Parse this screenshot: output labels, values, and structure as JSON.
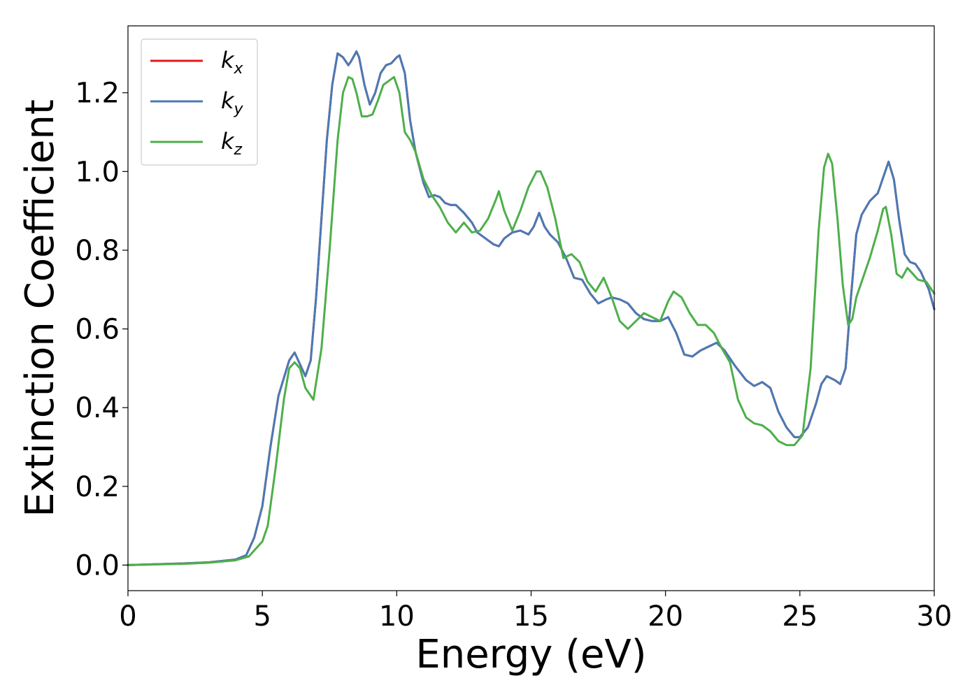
{
  "chart_data": {
    "type": "line",
    "xlabel": "Energy (eV)",
    "ylabel": "Extinction Coefficient",
    "xlim": [
      0,
      30
    ],
    "ylim": [
      -0.065,
      1.37
    ],
    "xticks": [
      0,
      5,
      10,
      15,
      20,
      25,
      30
    ],
    "xtick_labels": [
      "0",
      "5",
      "10",
      "15",
      "20",
      "25",
      "30"
    ],
    "yticks": [
      0.0,
      0.2,
      0.4,
      0.6,
      0.8,
      1.0,
      1.2
    ],
    "ytick_labels": [
      "0.0",
      "0.2",
      "0.4",
      "0.6",
      "0.8",
      "1.0",
      "1.2"
    ],
    "grid": false,
    "legend_position": "top-left",
    "series": [
      {
        "name": "kx",
        "base": "k",
        "sub": "x",
        "color": "#e41a1c",
        "x": [
          0,
          2,
          3,
          4,
          4.4,
          4.7,
          5.0,
          5.3,
          5.6,
          6.0,
          6.2,
          6.4,
          6.6,
          6.8,
          7.0,
          7.2,
          7.4,
          7.6,
          7.8,
          8.0,
          8.2,
          8.3,
          8.5,
          8.6,
          8.8,
          9.0,
          9.2,
          9.4,
          9.6,
          9.8,
          10.0,
          10.1,
          10.3,
          10.5,
          10.7,
          11.0,
          11.2,
          11.4,
          11.6,
          11.8,
          12.0,
          12.2,
          12.5,
          12.8,
          13.0,
          13.3,
          13.6,
          13.8,
          14.0,
          14.3,
          14.6,
          14.9,
          15.1,
          15.3,
          15.5,
          15.7,
          16.0,
          16.3,
          16.6,
          16.9,
          17.2,
          17.5,
          17.8,
          18.0,
          18.3,
          18.6,
          18.9,
          19.2,
          19.5,
          19.8,
          20.1,
          20.4,
          20.7,
          21.0,
          21.3,
          21.6,
          21.9,
          22.2,
          22.6,
          23.0,
          23.3,
          23.6,
          23.9,
          24.2,
          24.5,
          24.8,
          25.0,
          25.3,
          25.6,
          25.8,
          26.0,
          26.3,
          26.5,
          26.7,
          26.9,
          27.1,
          27.3,
          27.6,
          27.9,
          28.1,
          28.3,
          28.5,
          28.7,
          28.9,
          29.1,
          29.3,
          29.5,
          29.8,
          30.0
        ],
        "y": [
          0,
          0.004,
          0.007,
          0.014,
          0.025,
          0.07,
          0.15,
          0.3,
          0.43,
          0.52,
          0.54,
          0.51,
          0.48,
          0.52,
          0.68,
          0.88,
          1.08,
          1.22,
          1.3,
          1.29,
          1.27,
          1.28,
          1.305,
          1.29,
          1.22,
          1.17,
          1.2,
          1.25,
          1.27,
          1.275,
          1.29,
          1.295,
          1.25,
          1.13,
          1.05,
          0.97,
          0.935,
          0.94,
          0.935,
          0.92,
          0.915,
          0.915,
          0.895,
          0.87,
          0.845,
          0.83,
          0.815,
          0.81,
          0.83,
          0.845,
          0.85,
          0.84,
          0.86,
          0.895,
          0.86,
          0.84,
          0.82,
          0.78,
          0.73,
          0.725,
          0.69,
          0.665,
          0.675,
          0.68,
          0.675,
          0.665,
          0.64,
          0.625,
          0.62,
          0.62,
          0.63,
          0.59,
          0.535,
          0.53,
          0.545,
          0.555,
          0.565,
          0.545,
          0.505,
          0.47,
          0.455,
          0.465,
          0.45,
          0.39,
          0.35,
          0.325,
          0.325,
          0.35,
          0.41,
          0.46,
          0.48,
          0.47,
          0.46,
          0.5,
          0.68,
          0.84,
          0.89,
          0.925,
          0.945,
          0.985,
          1.025,
          0.98,
          0.875,
          0.79,
          0.77,
          0.765,
          0.745,
          0.7,
          0.65
        ]
      },
      {
        "name": "ky",
        "base": "k",
        "sub": "y",
        "color": "#4a7ab5",
        "x": [
          0,
          2,
          3,
          4,
          4.4,
          4.7,
          5.0,
          5.3,
          5.6,
          6.0,
          6.2,
          6.4,
          6.6,
          6.8,
          7.0,
          7.2,
          7.4,
          7.6,
          7.8,
          8.0,
          8.2,
          8.3,
          8.5,
          8.6,
          8.8,
          9.0,
          9.2,
          9.4,
          9.6,
          9.8,
          10.0,
          10.1,
          10.3,
          10.5,
          10.7,
          11.0,
          11.2,
          11.4,
          11.6,
          11.8,
          12.0,
          12.2,
          12.5,
          12.8,
          13.0,
          13.3,
          13.6,
          13.8,
          14.0,
          14.3,
          14.6,
          14.9,
          15.1,
          15.3,
          15.5,
          15.7,
          16.0,
          16.3,
          16.6,
          16.9,
          17.2,
          17.5,
          17.8,
          18.0,
          18.3,
          18.6,
          18.9,
          19.2,
          19.5,
          19.8,
          20.1,
          20.4,
          20.7,
          21.0,
          21.3,
          21.6,
          21.9,
          22.2,
          22.6,
          23.0,
          23.3,
          23.6,
          23.9,
          24.2,
          24.5,
          24.8,
          25.0,
          25.3,
          25.6,
          25.8,
          26.0,
          26.3,
          26.5,
          26.7,
          26.9,
          27.1,
          27.3,
          27.6,
          27.9,
          28.1,
          28.3,
          28.5,
          28.7,
          28.9,
          29.1,
          29.3,
          29.5,
          29.8,
          30.0
        ],
        "y": [
          0,
          0.004,
          0.007,
          0.014,
          0.025,
          0.07,
          0.15,
          0.3,
          0.43,
          0.52,
          0.54,
          0.51,
          0.48,
          0.52,
          0.68,
          0.88,
          1.08,
          1.22,
          1.3,
          1.29,
          1.27,
          1.28,
          1.305,
          1.29,
          1.22,
          1.17,
          1.2,
          1.25,
          1.27,
          1.275,
          1.29,
          1.295,
          1.25,
          1.13,
          1.05,
          0.97,
          0.935,
          0.94,
          0.935,
          0.92,
          0.915,
          0.915,
          0.895,
          0.87,
          0.845,
          0.83,
          0.815,
          0.81,
          0.83,
          0.845,
          0.85,
          0.84,
          0.86,
          0.895,
          0.86,
          0.84,
          0.82,
          0.78,
          0.73,
          0.725,
          0.69,
          0.665,
          0.675,
          0.68,
          0.675,
          0.665,
          0.64,
          0.625,
          0.62,
          0.62,
          0.63,
          0.59,
          0.535,
          0.53,
          0.545,
          0.555,
          0.565,
          0.545,
          0.505,
          0.47,
          0.455,
          0.465,
          0.45,
          0.39,
          0.35,
          0.325,
          0.325,
          0.35,
          0.41,
          0.46,
          0.48,
          0.47,
          0.46,
          0.5,
          0.68,
          0.84,
          0.89,
          0.925,
          0.945,
          0.985,
          1.025,
          0.98,
          0.875,
          0.79,
          0.77,
          0.765,
          0.745,
          0.7,
          0.65
        ]
      },
      {
        "name": "kz",
        "base": "k",
        "sub": "z",
        "color": "#4daf4a",
        "x": [
          0,
          2,
          3,
          4,
          4.5,
          5.0,
          5.2,
          5.5,
          5.8,
          6.0,
          6.2,
          6.4,
          6.6,
          6.9,
          7.2,
          7.5,
          7.8,
          8.0,
          8.2,
          8.35,
          8.5,
          8.7,
          8.9,
          9.1,
          9.3,
          9.5,
          9.7,
          9.9,
          10.1,
          10.3,
          10.5,
          10.7,
          11.0,
          11.3,
          11.6,
          11.9,
          12.2,
          12.5,
          12.8,
          13.1,
          13.4,
          13.7,
          13.8,
          14.0,
          14.3,
          14.6,
          14.9,
          15.2,
          15.35,
          15.6,
          15.9,
          16.2,
          16.5,
          16.8,
          17.1,
          17.4,
          17.7,
          18.0,
          18.3,
          18.6,
          18.9,
          19.2,
          19.5,
          19.8,
          20.1,
          20.3,
          20.6,
          20.9,
          21.2,
          21.5,
          21.8,
          22.1,
          22.4,
          22.7,
          23.0,
          23.3,
          23.6,
          23.9,
          24.2,
          24.5,
          24.8,
          25.1,
          25.4,
          25.7,
          25.9,
          26.05,
          26.2,
          26.4,
          26.6,
          26.8,
          26.95,
          27.1,
          27.3,
          27.6,
          27.9,
          28.1,
          28.2,
          28.4,
          28.6,
          28.8,
          29.0,
          29.2,
          29.4,
          29.7,
          30.0
        ],
        "y": [
          0,
          0.003,
          0.006,
          0.012,
          0.022,
          0.06,
          0.1,
          0.25,
          0.42,
          0.5,
          0.515,
          0.5,
          0.45,
          0.42,
          0.55,
          0.8,
          1.08,
          1.2,
          1.24,
          1.235,
          1.2,
          1.14,
          1.14,
          1.145,
          1.18,
          1.22,
          1.23,
          1.24,
          1.2,
          1.1,
          1.08,
          1.05,
          0.98,
          0.94,
          0.91,
          0.87,
          0.845,
          0.87,
          0.845,
          0.85,
          0.88,
          0.93,
          0.95,
          0.9,
          0.85,
          0.9,
          0.96,
          1.0,
          1.0,
          0.96,
          0.88,
          0.78,
          0.79,
          0.77,
          0.72,
          0.695,
          0.73,
          0.68,
          0.62,
          0.6,
          0.62,
          0.64,
          0.63,
          0.62,
          0.67,
          0.695,
          0.68,
          0.64,
          0.61,
          0.61,
          0.59,
          0.55,
          0.515,
          0.42,
          0.375,
          0.36,
          0.355,
          0.34,
          0.315,
          0.305,
          0.305,
          0.33,
          0.5,
          0.85,
          1.01,
          1.045,
          1.02,
          0.88,
          0.71,
          0.61,
          0.625,
          0.68,
          0.72,
          0.78,
          0.85,
          0.905,
          0.91,
          0.84,
          0.74,
          0.73,
          0.755,
          0.74,
          0.725,
          0.72,
          0.69
        ]
      }
    ]
  }
}
